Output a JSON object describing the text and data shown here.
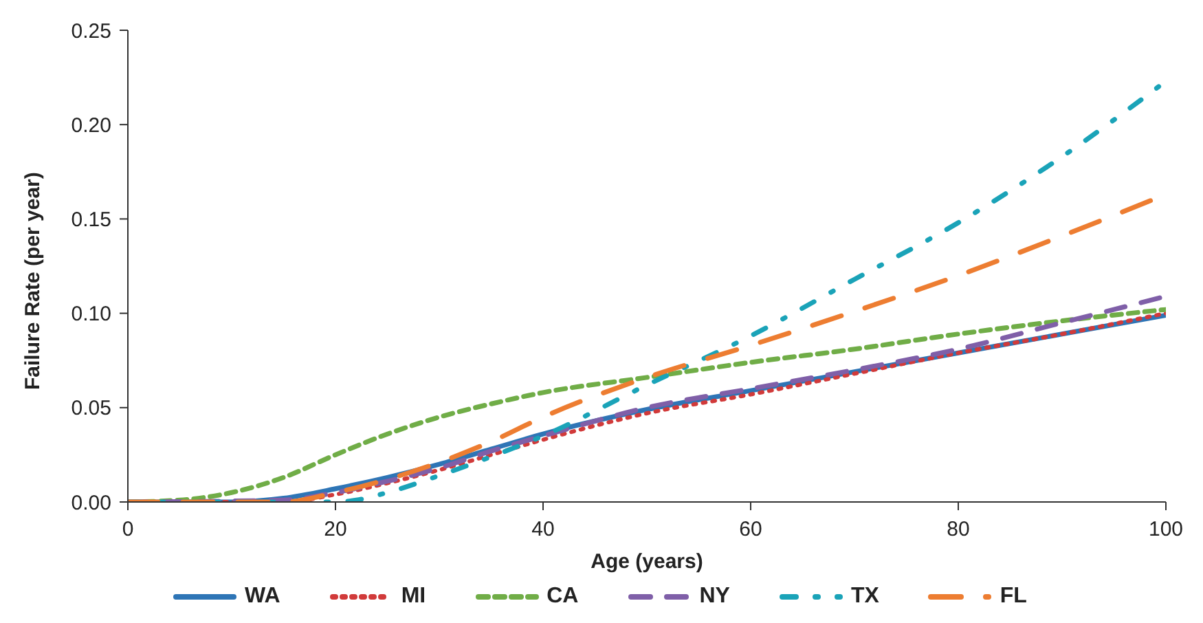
{
  "chart_data": {
    "type": "line",
    "xlabel": "Age (years)",
    "ylabel": "Failure Rate (per year)",
    "xlim": [
      0,
      100
    ],
    "ylim": [
      0,
      0.25
    ],
    "xticks": [
      0,
      20,
      40,
      60,
      80,
      100
    ],
    "yticks": [
      {
        "value": 0,
        "label": "0.00"
      },
      {
        "value": 0.05,
        "label": "0.05"
      },
      {
        "value": 0.1,
        "label": "0.10"
      },
      {
        "value": 0.15,
        "label": "0.15"
      },
      {
        "value": 0.2,
        "label": "0.20"
      },
      {
        "value": 0.25,
        "label": "0.25"
      }
    ],
    "grid": false,
    "legend": "bottom",
    "marker": "none",
    "series": [
      {
        "name": "WA",
        "color": "#2e75b6",
        "line_style": "solid",
        "x": [
          0,
          10,
          15,
          20,
          25,
          30,
          35,
          40,
          50,
          60,
          70,
          80,
          90,
          100
        ],
        "values": [
          0,
          0,
          0.002,
          0.007,
          0.013,
          0.02,
          0.028,
          0.036,
          0.049,
          0.059,
          0.069,
          0.079,
          0.089,
          0.099
        ]
      },
      {
        "name": "MI",
        "color": "#d13a3a",
        "line_style": "dotted",
        "x": [
          0,
          15,
          20,
          25,
          30,
          35,
          40,
          50,
          60,
          70,
          80,
          90,
          100
        ],
        "values": [
          0,
          0,
          0.004,
          0.01,
          0.017,
          0.025,
          0.033,
          0.047,
          0.057,
          0.068,
          0.079,
          0.089,
          0.1
        ]
      },
      {
        "name": "CA",
        "color": "#70ad47",
        "line_style": "dashed",
        "x": [
          0,
          5,
          10,
          15,
          20,
          25,
          30,
          35,
          40,
          50,
          60,
          70,
          80,
          90,
          100
        ],
        "values": [
          0,
          0.001,
          0.005,
          0.013,
          0.025,
          0.036,
          0.045,
          0.052,
          0.058,
          0.066,
          0.074,
          0.081,
          0.089,
          0.096,
          0.102
        ]
      },
      {
        "name": "NY",
        "color": "#7f5fa8",
        "line_style": "dashed",
        "x": [
          0,
          15,
          20,
          25,
          30,
          35,
          40,
          50,
          60,
          70,
          80,
          90,
          100
        ],
        "values": [
          0,
          0.001,
          0.005,
          0.011,
          0.018,
          0.027,
          0.035,
          0.05,
          0.06,
          0.07,
          0.081,
          0.095,
          0.109
        ]
      },
      {
        "name": "TX",
        "color": "#1aa3b8",
        "line_style": "dashed",
        "x": [
          0,
          20,
          22,
          25,
          30,
          35,
          40,
          50,
          60,
          70,
          80,
          90,
          100
        ],
        "values": [
          0,
          0,
          0.001,
          0.005,
          0.014,
          0.024,
          0.035,
          0.062,
          0.088,
          0.118,
          0.148,
          0.183,
          0.223
        ]
      },
      {
        "name": "FL",
        "color": "#ed7d31",
        "line_style": "dashed",
        "x": [
          0,
          15,
          20,
          25,
          30,
          35,
          40,
          50,
          60,
          70,
          80,
          90,
          100
        ],
        "values": [
          0,
          0,
          0.005,
          0.012,
          0.021,
          0.032,
          0.045,
          0.066,
          0.083,
          0.101,
          0.12,
          0.141,
          0.163
        ]
      }
    ]
  }
}
